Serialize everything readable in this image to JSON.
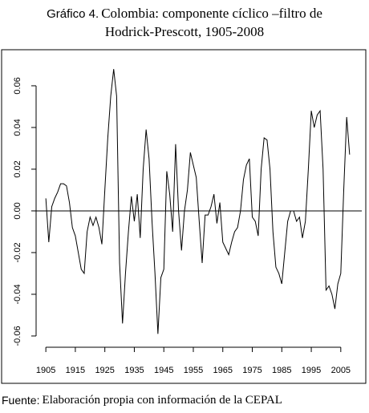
{
  "chart_data": {
    "type": "line",
    "title_label": "Gráfico 4.",
    "title": [
      "Colombia: componente cíclico –filtro de",
      "Hodrick-Prescott, 1905-2008"
    ],
    "source_label": "Fuente:",
    "source": "Elaboración propia con información de la CEPAL",
    "x": [
      1905,
      1906,
      1907,
      1908,
      1909,
      1910,
      1911,
      1912,
      1913,
      1914,
      1915,
      1916,
      1917,
      1918,
      1919,
      1920,
      1921,
      1922,
      1923,
      1924,
      1925,
      1926,
      1927,
      1928,
      1929,
      1930,
      1931,
      1932,
      1933,
      1934,
      1935,
      1936,
      1937,
      1938,
      1939,
      1940,
      1941,
      1942,
      1943,
      1944,
      1945,
      1946,
      1947,
      1948,
      1949,
      1950,
      1951,
      1952,
      1953,
      1954,
      1955,
      1956,
      1957,
      1958,
      1959,
      1960,
      1961,
      1962,
      1963,
      1964,
      1965,
      1966,
      1967,
      1968,
      1969,
      1970,
      1971,
      1972,
      1973,
      1974,
      1975,
      1976,
      1977,
      1978,
      1979,
      1980,
      1981,
      1982,
      1983,
      1984,
      1985,
      1986,
      1987,
      1988,
      1989,
      1990,
      1991,
      1992,
      1993,
      1994,
      1995,
      1996,
      1997,
      1998,
      1999,
      2000,
      2001,
      2002,
      2003,
      2004,
      2005,
      2006,
      2007,
      2008
    ],
    "values": [
      0.006,
      -0.015,
      0.002,
      0.006,
      0.009,
      0.013,
      0.013,
      0.012,
      0.004,
      -0.008,
      -0.012,
      -0.02,
      -0.028,
      -0.03,
      -0.01,
      -0.003,
      -0.007,
      -0.003,
      -0.008,
      -0.016,
      0.01,
      0.035,
      0.055,
      0.068,
      0.055,
      -0.025,
      -0.054,
      -0.03,
      -0.01,
      0.007,
      -0.005,
      0.008,
      -0.013,
      0.02,
      0.039,
      0.025,
      -0.005,
      -0.03,
      -0.059,
      -0.032,
      -0.028,
      0.019,
      0.008,
      -0.01,
      0.032,
      0.0,
      -0.019,
      0.0,
      0.01,
      0.028,
      0.022,
      0.016,
      -0.005,
      -0.025,
      -0.002,
      -0.002,
      0.002,
      0.008,
      -0.006,
      0.004,
      -0.015,
      -0.018,
      -0.021,
      -0.015,
      -0.01,
      -0.008,
      0.0,
      0.015,
      0.022,
      0.025,
      -0.003,
      -0.005,
      -0.012,
      0.02,
      0.035,
      0.034,
      0.02,
      -0.01,
      -0.027,
      -0.03,
      -0.035,
      -0.02,
      -0.005,
      0.0,
      0.0,
      -0.005,
      -0.003,
      -0.013,
      -0.005,
      0.02,
      0.048,
      0.04,
      0.046,
      0.048,
      0.02,
      -0.038,
      -0.036,
      -0.04,
      -0.047,
      -0.035,
      -0.03,
      0.01,
      0.045,
      0.027
    ],
    "color": "#000000",
    "reference_line": 0,
    "xlim": [
      1900.88,
      2012.12
    ],
    "ylim": [
      -0.0654,
      0.0696
    ],
    "xticks": [
      1905,
      1915,
      1925,
      1935,
      1945,
      1955,
      1965,
      1975,
      1985,
      1995,
      2005
    ],
    "yticks": [
      -0.06,
      -0.04,
      -0.02,
      {
        "value": 0,
        "label": "0.00"
      },
      0.02,
      0.04,
      0.06
    ]
  }
}
